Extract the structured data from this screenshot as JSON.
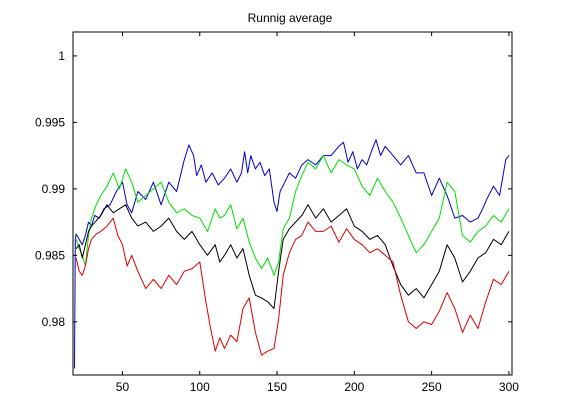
{
  "chart_data": {
    "type": "line",
    "title": "Runnig average",
    "xlabel": "",
    "ylabel": "",
    "xlim": [
      18,
      302
    ],
    "ylim": [
      0.976,
      1.0018
    ],
    "xticks": [
      50,
      100,
      150,
      200,
      250,
      300
    ],
    "yticks": [
      0.98,
      0.985,
      0.99,
      0.995,
      1
    ],
    "ytick_labels": [
      "0.98",
      "0.985",
      "0.99",
      "0.995",
      "1"
    ],
    "grid": false,
    "legend": "none",
    "series": [
      {
        "color": "#0000cc",
        "x": [
          19,
          19.5,
          20,
          22,
          24,
          26,
          28,
          30,
          32,
          35,
          38,
          42,
          46,
          50,
          53,
          56,
          60,
          65,
          70,
          75,
          80,
          85,
          90,
          93,
          96,
          98,
          101,
          104,
          108,
          112,
          116,
          120,
          124,
          127,
          129,
          131,
          133,
          136,
          139,
          142,
          145,
          148,
          150,
          152,
          155,
          158,
          162,
          166,
          170,
          175,
          180,
          185,
          190,
          193,
          196,
          199,
          202,
          205,
          208,
          211,
          214,
          217,
          220,
          225,
          230,
          235,
          240,
          245,
          250,
          255,
          260,
          265,
          270,
          275,
          280,
          283,
          286,
          290,
          294,
          298,
          300
        ],
        "y": [
          0.9765,
          0.9862,
          0.9866,
          0.9862,
          0.9858,
          0.9865,
          0.9875,
          0.9872,
          0.988,
          0.9878,
          0.9885,
          0.9888,
          0.9898,
          0.9905,
          0.9888,
          0.9882,
          0.9898,
          0.9892,
          0.9905,
          0.9888,
          0.9905,
          0.9898,
          0.9922,
          0.9933,
          0.9925,
          0.991,
          0.9918,
          0.9905,
          0.9912,
          0.9903,
          0.9908,
          0.9915,
          0.9905,
          0.9912,
          0.9928,
          0.9912,
          0.9925,
          0.9915,
          0.992,
          0.991,
          0.9915,
          0.989,
          0.9883,
          0.9898,
          0.9905,
          0.9912,
          0.9908,
          0.9918,
          0.9922,
          0.9918,
          0.9925,
          0.9925,
          0.9932,
          0.9935,
          0.992,
          0.9928,
          0.9915,
          0.9922,
          0.9918,
          0.9928,
          0.9937,
          0.9925,
          0.9932,
          0.9925,
          0.9918,
          0.9925,
          0.9912,
          0.9912,
          0.9895,
          0.9908,
          0.9895,
          0.9878,
          0.988,
          0.9875,
          0.9878,
          0.9885,
          0.9893,
          0.9902,
          0.9895,
          0.9922,
          0.9925
        ]
      },
      {
        "color": "#00e000",
        "x": [
          20,
          22,
          24,
          26,
          28,
          30,
          33,
          36,
          40,
          44,
          48,
          52,
          56,
          60,
          65,
          70,
          75,
          80,
          85,
          90,
          95,
          100,
          105,
          110,
          113,
          116,
          120,
          124,
          128,
          132,
          136,
          140,
          144,
          148,
          151,
          154,
          158,
          162,
          166,
          170,
          175,
          180,
          185,
          190,
          195,
          200,
          205,
          210,
          215,
          220,
          225,
          230,
          235,
          240,
          245,
          250,
          255,
          260,
          265,
          270,
          275,
          280,
          285,
          290,
          295,
          300
        ],
        "y": [
          0.9862,
          0.9855,
          0.985,
          0.9842,
          0.9865,
          0.9878,
          0.9888,
          0.9895,
          0.9902,
          0.9912,
          0.99,
          0.9915,
          0.9905,
          0.989,
          0.9895,
          0.99,
          0.9905,
          0.989,
          0.9882,
          0.9885,
          0.988,
          0.9878,
          0.9868,
          0.9885,
          0.9878,
          0.988,
          0.9888,
          0.987,
          0.9878,
          0.986,
          0.9848,
          0.984,
          0.9848,
          0.9835,
          0.9845,
          0.987,
          0.9878,
          0.9898,
          0.991,
          0.992,
          0.9915,
          0.9925,
          0.9912,
          0.9922,
          0.9918,
          0.9915,
          0.9902,
          0.9895,
          0.9908,
          0.9898,
          0.989,
          0.9878,
          0.9865,
          0.9852,
          0.9858,
          0.9868,
          0.9878,
          0.9905,
          0.9898,
          0.9865,
          0.986,
          0.9868,
          0.9872,
          0.988,
          0.9875,
          0.9885
        ]
      },
      {
        "color": "#000000",
        "x": [
          20,
          22,
          24,
          26,
          28,
          30,
          33,
          36,
          40,
          44,
          48,
          52,
          56,
          60,
          65,
          70,
          75,
          80,
          85,
          90,
          95,
          100,
          105,
          110,
          113,
          116,
          120,
          124,
          128,
          132,
          136,
          140,
          144,
          148,
          151,
          154,
          158,
          162,
          166,
          170,
          175,
          180,
          185,
          190,
          195,
          200,
          205,
          210,
          215,
          220,
          225,
          230,
          235,
          240,
          245,
          250,
          255,
          260,
          265,
          270,
          275,
          280,
          285,
          290,
          295,
          300
        ],
        "y": [
          0.9855,
          0.9858,
          0.9848,
          0.9858,
          0.9868,
          0.9872,
          0.9876,
          0.988,
          0.9888,
          0.9882,
          0.9885,
          0.9888,
          0.9878,
          0.9872,
          0.9875,
          0.9868,
          0.9872,
          0.9878,
          0.9868,
          0.9862,
          0.9868,
          0.9858,
          0.985,
          0.9858,
          0.9845,
          0.985,
          0.9858,
          0.9848,
          0.9855,
          0.9835,
          0.982,
          0.9818,
          0.9815,
          0.981,
          0.9838,
          0.9862,
          0.987,
          0.9875,
          0.988,
          0.9888,
          0.9878,
          0.9885,
          0.9875,
          0.988,
          0.9885,
          0.9872,
          0.9868,
          0.9862,
          0.9865,
          0.9858,
          0.9842,
          0.9828,
          0.982,
          0.9825,
          0.9818,
          0.9828,
          0.9838,
          0.9858,
          0.9848,
          0.983,
          0.9838,
          0.9848,
          0.9852,
          0.9862,
          0.9858,
          0.9868
        ]
      },
      {
        "color": "#dd0000",
        "x": [
          20,
          22,
          24,
          26,
          28,
          30,
          33,
          36,
          40,
          44,
          47,
          50,
          53,
          56,
          60,
          65,
          70,
          75,
          80,
          85,
          90,
          95,
          100,
          104,
          107,
          110,
          113,
          116,
          120,
          124,
          128,
          132,
          136,
          140,
          144,
          148,
          151,
          154,
          158,
          162,
          166,
          170,
          175,
          180,
          185,
          190,
          195,
          200,
          205,
          210,
          215,
          220,
          225,
          230,
          235,
          240,
          245,
          250,
          255,
          260,
          265,
          270,
          275,
          280,
          285,
          290,
          295,
          300
        ],
        "y": [
          0.9848,
          0.9838,
          0.9835,
          0.9842,
          0.9855,
          0.9862,
          0.9866,
          0.9868,
          0.9872,
          0.9878,
          0.9865,
          0.9858,
          0.9842,
          0.985,
          0.9838,
          0.9825,
          0.9832,
          0.9825,
          0.9835,
          0.9828,
          0.9838,
          0.984,
          0.9845,
          0.9815,
          0.9795,
          0.9778,
          0.9788,
          0.978,
          0.979,
          0.9785,
          0.981,
          0.9818,
          0.9792,
          0.9775,
          0.9778,
          0.978,
          0.9802,
          0.9835,
          0.9852,
          0.9862,
          0.9865,
          0.9875,
          0.9868,
          0.9868,
          0.9872,
          0.986,
          0.987,
          0.9862,
          0.9858,
          0.9852,
          0.9855,
          0.985,
          0.9845,
          0.982,
          0.98,
          0.9795,
          0.98,
          0.9798,
          0.9808,
          0.9822,
          0.981,
          0.9792,
          0.9805,
          0.9795,
          0.9815,
          0.9832,
          0.9828,
          0.9838
        ]
      }
    ]
  }
}
